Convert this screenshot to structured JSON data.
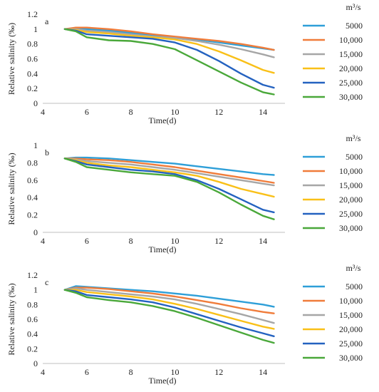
{
  "legend": {
    "unit_title": "m³/s",
    "placement": "right"
  },
  "chart_data": [
    {
      "type": "line",
      "panel_label": "a",
      "xlabel": "Time(d)",
      "ylabel": "Relative salinity (‰)",
      "xlim": [
        4,
        15
      ],
      "ylim": [
        0,
        1.2
      ],
      "xticks": [
        4,
        6,
        8,
        10,
        12,
        14
      ],
      "xtick_labels": [
        "4",
        "6",
        "8",
        "10",
        "12",
        "14"
      ],
      "yticks": [
        0,
        0.2,
        0.4,
        0.6,
        0.8,
        1,
        1.2
      ],
      "ytick_labels": [
        "0",
        "0.2",
        "0.4",
        "0.6",
        "0.8",
        "1",
        "1.2"
      ],
      "grid": false,
      "series": [
        {
          "name": "5000",
          "color": "#2e9fd8",
          "x": [
            5,
            5.5,
            6,
            7,
            8,
            9,
            10,
            11,
            12,
            13,
            14,
            14.5
          ],
          "y": [
            1,
            1.01,
            1.0,
            0.98,
            0.95,
            0.92,
            0.89,
            0.86,
            0.82,
            0.78,
            0.74,
            0.72
          ]
        },
        {
          "name": "10,000",
          "color": "#f07c3a",
          "x": [
            5,
            5.5,
            6,
            7,
            8,
            9,
            10,
            11,
            12,
            13,
            14,
            14.5
          ],
          "y": [
            1,
            1.02,
            1.02,
            1.0,
            0.97,
            0.93,
            0.9,
            0.87,
            0.84,
            0.8,
            0.75,
            0.72
          ]
        },
        {
          "name": "15,000",
          "color": "#a6a6a6",
          "x": [
            5,
            5.5,
            6,
            7,
            8,
            9,
            10,
            11,
            12,
            13,
            14,
            14.5
          ],
          "y": [
            1,
            1.0,
            0.98,
            0.96,
            0.93,
            0.9,
            0.88,
            0.84,
            0.79,
            0.73,
            0.66,
            0.62
          ]
        },
        {
          "name": "20,000",
          "color": "#f9c018",
          "x": [
            5,
            5.5,
            6,
            7,
            8,
            9,
            10,
            11,
            12,
            13,
            14,
            14.5
          ],
          "y": [
            1,
            0.99,
            0.96,
            0.94,
            0.91,
            0.89,
            0.86,
            0.8,
            0.7,
            0.58,
            0.45,
            0.41
          ]
        },
        {
          "name": "25,000",
          "color": "#2462c0",
          "x": [
            5,
            5.5,
            6,
            7,
            8,
            9,
            10,
            11,
            12,
            13,
            14,
            14.5
          ],
          "y": [
            1,
            0.98,
            0.93,
            0.91,
            0.89,
            0.87,
            0.82,
            0.72,
            0.57,
            0.4,
            0.25,
            0.21
          ]
        },
        {
          "name": "30,000",
          "color": "#4aa83a",
          "x": [
            5,
            5.5,
            6,
            7,
            8,
            9,
            10,
            11,
            12,
            13,
            14,
            14.5
          ],
          "y": [
            1,
            0.97,
            0.89,
            0.85,
            0.84,
            0.8,
            0.73,
            0.58,
            0.43,
            0.28,
            0.15,
            0.12
          ]
        }
      ]
    },
    {
      "type": "line",
      "panel_label": "b",
      "xlabel": "Time(d)",
      "ylabel": "Relative salinity (‰)",
      "xlim": [
        4,
        15
      ],
      "ylim": [
        0,
        1
      ],
      "xticks": [
        4,
        6,
        8,
        10,
        12,
        14
      ],
      "xtick_labels": [
        "4",
        "6",
        "8",
        "10",
        "12",
        "14"
      ],
      "yticks": [
        0,
        0.2,
        0.4,
        0.6,
        0.8,
        1
      ],
      "ytick_labels": [
        "0",
        "0.2",
        "0.4",
        "0.6",
        "0.8",
        "1"
      ],
      "grid": false,
      "series": [
        {
          "name": "5000",
          "color": "#2e9fd8",
          "x": [
            5,
            5.5,
            6,
            7,
            8,
            9,
            10,
            11,
            12,
            13,
            14,
            14.5
          ],
          "y": [
            0.85,
            0.86,
            0.86,
            0.85,
            0.83,
            0.81,
            0.79,
            0.76,
            0.73,
            0.7,
            0.67,
            0.66
          ]
        },
        {
          "name": "10,000",
          "color": "#f07c3a",
          "x": [
            5,
            5.5,
            6,
            7,
            8,
            9,
            10,
            11,
            12,
            13,
            14,
            14.5
          ],
          "y": [
            0.85,
            0.85,
            0.84,
            0.83,
            0.81,
            0.78,
            0.75,
            0.71,
            0.67,
            0.63,
            0.59,
            0.57
          ]
        },
        {
          "name": "15,000",
          "color": "#a6a6a6",
          "x": [
            5,
            5.5,
            6,
            7,
            8,
            9,
            10,
            11,
            12,
            13,
            14,
            14.5
          ],
          "y": [
            0.85,
            0.84,
            0.82,
            0.8,
            0.78,
            0.75,
            0.72,
            0.68,
            0.64,
            0.6,
            0.56,
            0.54
          ]
        },
        {
          "name": "20,000",
          "color": "#f9c018",
          "x": [
            5,
            5.5,
            6,
            7,
            8,
            9,
            10,
            11,
            12,
            13,
            14,
            14.5
          ],
          "y": [
            0.85,
            0.83,
            0.8,
            0.77,
            0.75,
            0.72,
            0.69,
            0.65,
            0.58,
            0.5,
            0.44,
            0.41
          ]
        },
        {
          "name": "25,000",
          "color": "#2462c0",
          "x": [
            5,
            5.5,
            6,
            7,
            8,
            9,
            10,
            11,
            12,
            13,
            14,
            14.5
          ],
          "y": [
            0.85,
            0.82,
            0.78,
            0.75,
            0.72,
            0.7,
            0.67,
            0.6,
            0.5,
            0.38,
            0.26,
            0.23
          ]
        },
        {
          "name": "30,000",
          "color": "#4aa83a",
          "x": [
            5,
            5.5,
            6,
            7,
            8,
            9,
            10,
            11,
            12,
            13,
            14,
            14.5
          ],
          "y": [
            0.85,
            0.81,
            0.75,
            0.72,
            0.69,
            0.67,
            0.65,
            0.58,
            0.46,
            0.32,
            0.19,
            0.15
          ]
        }
      ]
    },
    {
      "type": "line",
      "panel_label": "c",
      "xlabel": "Time(d)",
      "ylabel": "Relative salinity (‰)",
      "xlim": [
        4,
        15
      ],
      "ylim": [
        0,
        1.2
      ],
      "xticks": [
        4,
        6,
        8,
        10,
        12,
        14
      ],
      "xtick_labels": [
        "4",
        "6",
        "8",
        "10",
        "12",
        "14"
      ],
      "yticks": [
        0,
        0.2,
        0.4,
        0.6,
        0.8,
        1,
        1.2
      ],
      "ytick_labels": [
        "0",
        "0.2",
        "0.4",
        "0.6",
        "0.8",
        "1",
        "1.2"
      ],
      "grid": false,
      "series": [
        {
          "name": "5000",
          "color": "#2e9fd8",
          "x": [
            5,
            5.5,
            6,
            7,
            8,
            9,
            10,
            11,
            12,
            13,
            14,
            14.5
          ],
          "y": [
            1,
            1.05,
            1.04,
            1.02,
            1.0,
            0.98,
            0.95,
            0.92,
            0.88,
            0.84,
            0.8,
            0.77
          ]
        },
        {
          "name": "10,000",
          "color": "#f07c3a",
          "x": [
            5,
            5.5,
            6,
            7,
            8,
            9,
            10,
            11,
            12,
            13,
            14,
            14.5
          ],
          "y": [
            1,
            1.03,
            1.03,
            1.01,
            0.98,
            0.95,
            0.91,
            0.86,
            0.81,
            0.75,
            0.7,
            0.68
          ]
        },
        {
          "name": "15,000",
          "color": "#a6a6a6",
          "x": [
            5,
            5.5,
            6,
            7,
            8,
            9,
            10,
            11,
            12,
            13,
            14,
            14.5
          ],
          "y": [
            1,
            1.02,
            1.0,
            0.97,
            0.94,
            0.91,
            0.87,
            0.81,
            0.74,
            0.67,
            0.59,
            0.55
          ]
        },
        {
          "name": "20,000",
          "color": "#f9c018",
          "x": [
            5,
            5.5,
            6,
            7,
            8,
            9,
            10,
            11,
            12,
            13,
            14,
            14.5
          ],
          "y": [
            1,
            1.0,
            0.97,
            0.94,
            0.91,
            0.87,
            0.81,
            0.74,
            0.66,
            0.58,
            0.5,
            0.47
          ]
        },
        {
          "name": "25,000",
          "color": "#2462c0",
          "x": [
            5,
            5.5,
            6,
            7,
            8,
            9,
            10,
            11,
            12,
            13,
            14,
            14.5
          ],
          "y": [
            1,
            0.98,
            0.93,
            0.9,
            0.87,
            0.83,
            0.76,
            0.67,
            0.58,
            0.49,
            0.41,
            0.37
          ]
        },
        {
          "name": "30,000",
          "color": "#4aa83a",
          "x": [
            5,
            5.5,
            6,
            7,
            8,
            9,
            10,
            11,
            12,
            13,
            14,
            14.5
          ],
          "y": [
            1,
            0.96,
            0.9,
            0.86,
            0.83,
            0.78,
            0.71,
            0.62,
            0.52,
            0.42,
            0.32,
            0.28
          ]
        }
      ]
    }
  ]
}
